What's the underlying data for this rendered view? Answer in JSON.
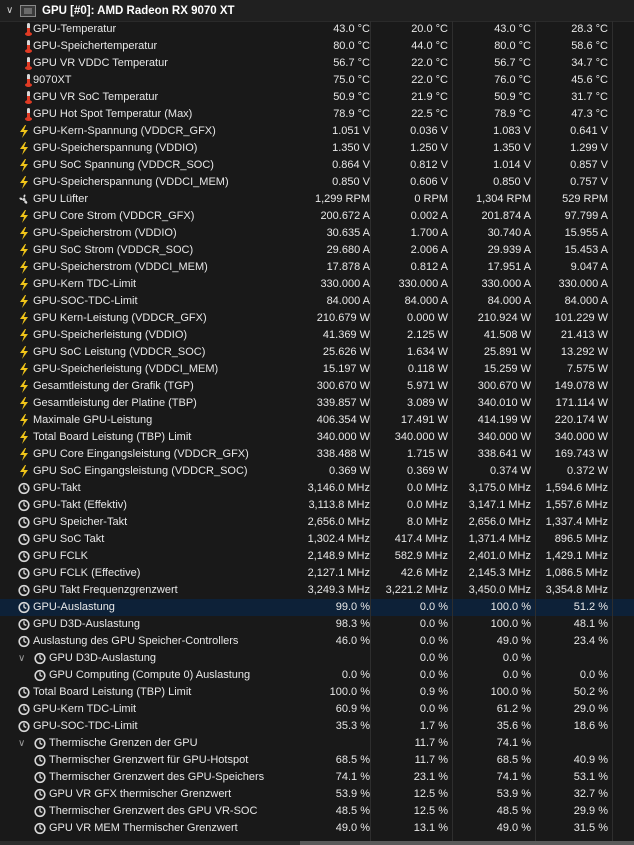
{
  "header": {
    "title": "GPU [#0]: AMD Radeon RX 9070 XT"
  },
  "rows": [
    {
      "icon": "thermometer-icon",
      "label": "GPU-Temperatur",
      "v": [
        "43.0 °C",
        "20.0 °C",
        "43.0 °C",
        "28.3 °C"
      ]
    },
    {
      "icon": "thermometer-icon",
      "label": "GPU-Speichertemperatur",
      "v": [
        "80.0 °C",
        "44.0 °C",
        "80.0 °C",
        "58.6 °C"
      ]
    },
    {
      "icon": "thermometer-icon",
      "label": "GPU VR VDDC Temperatur",
      "v": [
        "56.7 °C",
        "22.0 °C",
        "56.7 °C",
        "34.7 °C"
      ]
    },
    {
      "icon": "thermometer-icon",
      "label": "9070XT",
      "v": [
        "75.0 °C",
        "22.0 °C",
        "76.0 °C",
        "45.6 °C"
      ]
    },
    {
      "icon": "thermometer-icon",
      "label": "GPU VR SoC Temperatur",
      "v": [
        "50.9 °C",
        "21.9 °C",
        "50.9 °C",
        "31.7 °C"
      ]
    },
    {
      "icon": "thermometer-icon",
      "label": "GPU Hot Spot Temperatur (Max)",
      "v": [
        "78.9 °C",
        "22.5 °C",
        "78.9 °C",
        "47.3 °C"
      ]
    },
    {
      "icon": "bolt-icon",
      "label": "GPU-Kern-Spannung (VDDCR_GFX)",
      "v": [
        "1.051 V",
        "0.036 V",
        "1.083 V",
        "0.641 V"
      ]
    },
    {
      "icon": "bolt-icon",
      "label": "GPU-Speicherspannung (VDDIO)",
      "v": [
        "1.350 V",
        "1.250 V",
        "1.350 V",
        "1.299 V"
      ]
    },
    {
      "icon": "bolt-icon",
      "label": "GPU SoC Spannung (VDDCR_SOC)",
      "v": [
        "0.864 V",
        "0.812 V",
        "1.014 V",
        "0.857 V"
      ]
    },
    {
      "icon": "bolt-icon",
      "label": "GPU-Speicherspannung (VDDCI_MEM)",
      "v": [
        "0.850 V",
        "0.606 V",
        "0.850 V",
        "0.757 V"
      ]
    },
    {
      "icon": "fan-icon",
      "label": "GPU Lüfter",
      "v": [
        "1,299 RPM",
        "0 RPM",
        "1,304 RPM",
        "529 RPM"
      ]
    },
    {
      "icon": "bolt-icon",
      "label": "GPU Core Strom (VDDCR_GFX)",
      "v": [
        "200.672 A",
        "0.002 A",
        "201.874 A",
        "97.799 A"
      ]
    },
    {
      "icon": "bolt-icon",
      "label": "GPU-Speicherstrom (VDDIO)",
      "v": [
        "30.635 A",
        "1.700 A",
        "30.740 A",
        "15.955 A"
      ]
    },
    {
      "icon": "bolt-icon",
      "label": "GPU SoC Strom (VDDCR_SOC)",
      "v": [
        "29.680 A",
        "2.006 A",
        "29.939 A",
        "15.453 A"
      ]
    },
    {
      "icon": "bolt-icon",
      "label": "GPU-Speicherstrom (VDDCI_MEM)",
      "v": [
        "17.878 A",
        "0.812 A",
        "17.951 A",
        "9.047 A"
      ]
    },
    {
      "icon": "bolt-icon",
      "label": "GPU-Kern TDC-Limit",
      "v": [
        "330.000 A",
        "330.000 A",
        "330.000 A",
        "330.000 A"
      ]
    },
    {
      "icon": "bolt-icon",
      "label": "GPU-SOC-TDC-Limit",
      "v": [
        "84.000 A",
        "84.000 A",
        "84.000 A",
        "84.000 A"
      ]
    },
    {
      "icon": "bolt-icon",
      "label": "GPU Kern-Leistung (VDDCR_GFX)",
      "v": [
        "210.679 W",
        "0.000 W",
        "210.924 W",
        "101.229 W"
      ]
    },
    {
      "icon": "bolt-icon",
      "label": "GPU-Speicherleistung (VDDIO)",
      "v": [
        "41.369 W",
        "2.125 W",
        "41.508 W",
        "21.413 W"
      ]
    },
    {
      "icon": "bolt-icon",
      "label": "GPU SoC Leistung (VDDCR_SOC)",
      "v": [
        "25.626 W",
        "1.634 W",
        "25.891 W",
        "13.292 W"
      ]
    },
    {
      "icon": "bolt-icon",
      "label": "GPU-Speicherleistung (VDDCI_MEM)",
      "v": [
        "15.197 W",
        "0.118 W",
        "15.259 W",
        "7.575 W"
      ]
    },
    {
      "icon": "bolt-icon",
      "label": "Gesamtleistung der Grafik (TGP)",
      "v": [
        "300.670 W",
        "5.971 W",
        "300.670 W",
        "149.078 W"
      ]
    },
    {
      "icon": "bolt-icon",
      "label": "Gesamtleistung der Platine (TBP)",
      "v": [
        "339.857 W",
        "3.089 W",
        "340.010 W",
        "171.114 W"
      ]
    },
    {
      "icon": "bolt-icon",
      "label": "Maximale GPU-Leistung",
      "v": [
        "406.354 W",
        "17.491 W",
        "414.199 W",
        "220.174 W"
      ]
    },
    {
      "icon": "bolt-icon",
      "label": "Total Board Leistung (TBP) Limit",
      "v": [
        "340.000 W",
        "340.000 W",
        "340.000 W",
        "340.000 W"
      ]
    },
    {
      "icon": "bolt-icon",
      "label": "GPU Core Eingangsleistung (VDDCR_GFX)",
      "v": [
        "338.488 W",
        "1.715 W",
        "338.641 W",
        "169.743 W"
      ]
    },
    {
      "icon": "bolt-icon",
      "label": "GPU SoC Eingangsleistung (VDDCR_SOC)",
      "v": [
        "0.369 W",
        "0.369 W",
        "0.374 W",
        "0.372 W"
      ]
    },
    {
      "icon": "clock-icon",
      "label": "GPU-Takt",
      "v": [
        "3,146.0 MHz",
        "0.0 MHz",
        "3,175.0 MHz",
        "1,594.6 MHz"
      ]
    },
    {
      "icon": "clock-icon",
      "label": "GPU-Takt (Effektiv)",
      "v": [
        "3,113.8 MHz",
        "0.0 MHz",
        "3,147.1 MHz",
        "1,557.6 MHz"
      ]
    },
    {
      "icon": "clock-icon",
      "label": "GPU Speicher-Takt",
      "v": [
        "2,656.0 MHz",
        "8.0 MHz",
        "2,656.0 MHz",
        "1,337.4 MHz"
      ]
    },
    {
      "icon": "clock-icon",
      "label": "GPU SoC Takt",
      "v": [
        "1,302.4 MHz",
        "417.4 MHz",
        "1,371.4 MHz",
        "896.5 MHz"
      ]
    },
    {
      "icon": "clock-icon",
      "label": "GPU FCLK",
      "v": [
        "2,148.9 MHz",
        "582.9 MHz",
        "2,401.0 MHz",
        "1,429.1 MHz"
      ]
    },
    {
      "icon": "clock-icon",
      "label": "GPU FCLK (Effective)",
      "v": [
        "2,127.1 MHz",
        "42.6 MHz",
        "2,145.3 MHz",
        "1,086.5 MHz"
      ]
    },
    {
      "icon": "clock-icon",
      "label": "GPU Takt Frequenzgrenzwert",
      "v": [
        "3,249.3 MHz",
        "3,221.2 MHz",
        "3,450.0 MHz",
        "3,354.8 MHz"
      ]
    },
    {
      "icon": "clock-icon",
      "label": "GPU-Auslastung",
      "v": [
        "99.0 %",
        "0.0 %",
        "100.0 %",
        "51.2 %"
      ],
      "sel": true
    },
    {
      "icon": "clock-icon",
      "label": "GPU D3D-Auslastung",
      "v": [
        "98.3 %",
        "0.0 %",
        "100.0 %",
        "48.1 %"
      ]
    },
    {
      "icon": "clock-icon",
      "label": "Auslastung des GPU Speicher-Controllers",
      "v": [
        "46.0 %",
        "0.0 %",
        "49.0 %",
        "23.4 %"
      ]
    },
    {
      "icon": "clock-icon",
      "label": "GPU D3D-Auslastung",
      "v": [
        "",
        "0.0 %",
        "0.0 %",
        ""
      ],
      "level": 1,
      "expand": true
    },
    {
      "icon": "clock-icon",
      "label": "GPU Computing (Compute 0) Auslastung",
      "v": [
        "0.0 %",
        "0.0 %",
        "0.0 %",
        "0.0 %"
      ],
      "level": 2
    },
    {
      "icon": "clock-icon",
      "label": "Total Board Leistung (TBP) Limit",
      "v": [
        "100.0 %",
        "0.9 %",
        "100.0 %",
        "50.2 %"
      ]
    },
    {
      "icon": "clock-icon",
      "label": "GPU-Kern TDC-Limit",
      "v": [
        "60.9 %",
        "0.0 %",
        "61.2 %",
        "29.0 %"
      ]
    },
    {
      "icon": "clock-icon",
      "label": "GPU-SOC-TDC-Limit",
      "v": [
        "35.3 %",
        "1.7 %",
        "35.6 %",
        "18.6 %"
      ]
    },
    {
      "icon": "clock-icon",
      "label": "Thermische Grenzen der GPU",
      "v": [
        "",
        "11.7 %",
        "74.1 %",
        ""
      ],
      "level": 1,
      "expand": true
    },
    {
      "icon": "clock-icon",
      "label": "Thermischer Grenzwert für GPU-Hotspot",
      "v": [
        "68.5 %",
        "11.7 %",
        "68.5 %",
        "40.9 %"
      ],
      "level": 2
    },
    {
      "icon": "clock-icon",
      "label": "Thermischer Grenzwert des GPU-Speichers",
      "v": [
        "74.1 %",
        "23.1 %",
        "74.1 %",
        "53.1 %"
      ],
      "level": 2
    },
    {
      "icon": "clock-icon",
      "label": "GPU VR GFX thermischer Grenzwert",
      "v": [
        "53.9 %",
        "12.5 %",
        "53.9 %",
        "32.7 %"
      ],
      "level": 2
    },
    {
      "icon": "clock-icon",
      "label": "Thermischer Grenzwert des GPU VR-SOC",
      "v": [
        "48.5 %",
        "12.5 %",
        "48.5 %",
        "29.9 %"
      ],
      "level": 2
    },
    {
      "icon": "clock-icon",
      "label": "GPU VR MEM Thermischer Grenzwert",
      "v": [
        "49.0 %",
        "13.1 %",
        "49.0 %",
        "31.5 %"
      ],
      "level": 2
    }
  ]
}
